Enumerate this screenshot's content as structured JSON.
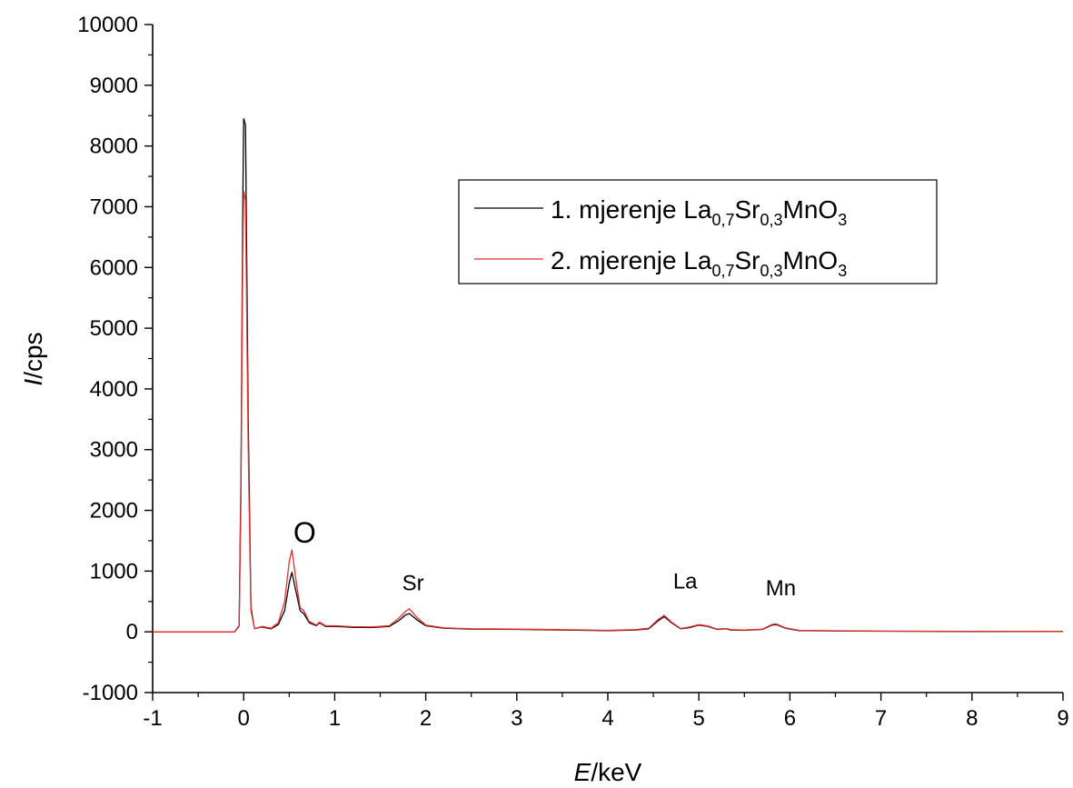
{
  "chart_data": {
    "type": "line",
    "xlabel": {
      "italic": "E",
      "rest": "/keV"
    },
    "ylabel": {
      "italic": "I",
      "rest": "/cps"
    },
    "xlim": [
      -1,
      9
    ],
    "ylim": [
      -1000,
      10000
    ],
    "xticks": [
      -1,
      0,
      1,
      2,
      3,
      4,
      5,
      6,
      7,
      8,
      9
    ],
    "yticks": [
      -1000,
      0,
      1000,
      2000,
      3000,
      4000,
      5000,
      6000,
      7000,
      8000,
      9000,
      10000
    ],
    "grid": false,
    "legend_position": "top-right",
    "series": [
      {
        "color": "#000000",
        "legend": {
          "prefix": "1. mjerenje La",
          "sub1": "0,7",
          "mid1": "Sr",
          "sub2": "0,3",
          "mid2": "MnO",
          "sub3": "3"
        },
        "points": [
          [
            -1,
            0
          ],
          [
            -0.1,
            0
          ],
          [
            -0.05,
            100
          ],
          [
            -0.03,
            2500
          ],
          [
            -0.01,
            7000
          ],
          [
            0.0,
            8450
          ],
          [
            0.02,
            8350
          ],
          [
            0.05,
            3500
          ],
          [
            0.08,
            400
          ],
          [
            0.12,
            50
          ],
          [
            0.2,
            80
          ],
          [
            0.3,
            50
          ],
          [
            0.38,
            120
          ],
          [
            0.45,
            350
          ],
          [
            0.5,
            800
          ],
          [
            0.53,
            980
          ],
          [
            0.57,
            700
          ],
          [
            0.62,
            350
          ],
          [
            0.66,
            300
          ],
          [
            0.72,
            150
          ],
          [
            0.8,
            100
          ],
          [
            0.83,
            150
          ],
          [
            0.9,
            90
          ],
          [
            1.0,
            90
          ],
          [
            1.2,
            75
          ],
          [
            1.4,
            70
          ],
          [
            1.6,
            90
          ],
          [
            1.7,
            180
          ],
          [
            1.78,
            280
          ],
          [
            1.82,
            300
          ],
          [
            1.9,
            200
          ],
          [
            2.0,
            100
          ],
          [
            2.2,
            60
          ],
          [
            2.5,
            45
          ],
          [
            3.0,
            40
          ],
          [
            3.5,
            30
          ],
          [
            4.0,
            20
          ],
          [
            4.3,
            30
          ],
          [
            4.45,
            50
          ],
          [
            4.55,
            180
          ],
          [
            4.62,
            250
          ],
          [
            4.7,
            150
          ],
          [
            4.8,
            50
          ],
          [
            4.9,
            70
          ],
          [
            5.0,
            110
          ],
          [
            5.1,
            90
          ],
          [
            5.2,
            40
          ],
          [
            5.3,
            50
          ],
          [
            5.35,
            30
          ],
          [
            5.5,
            25
          ],
          [
            5.7,
            40
          ],
          [
            5.8,
            110
          ],
          [
            5.85,
            120
          ],
          [
            5.95,
            60
          ],
          [
            6.1,
            20
          ],
          [
            6.5,
            15
          ],
          [
            7.0,
            10
          ],
          [
            8.0,
            5
          ],
          [
            9.0,
            5
          ]
        ]
      },
      {
        "color": "#e8312c",
        "legend": {
          "prefix": "2. mjerenje La",
          "sub1": "0,7",
          "mid1": "Sr",
          "sub2": "0,3",
          "mid2": "MnO",
          "sub3": "3"
        },
        "points": [
          [
            -1,
            0
          ],
          [
            -0.1,
            0
          ],
          [
            -0.05,
            90
          ],
          [
            -0.03,
            2200
          ],
          [
            -0.01,
            6200
          ],
          [
            0.0,
            7250
          ],
          [
            0.02,
            7100
          ],
          [
            0.05,
            3000
          ],
          [
            0.08,
            350
          ],
          [
            0.12,
            50
          ],
          [
            0.2,
            90
          ],
          [
            0.3,
            60
          ],
          [
            0.38,
            150
          ],
          [
            0.45,
            500
          ],
          [
            0.5,
            1150
          ],
          [
            0.53,
            1350
          ],
          [
            0.57,
            900
          ],
          [
            0.62,
            400
          ],
          [
            0.66,
            350
          ],
          [
            0.72,
            170
          ],
          [
            0.8,
            110
          ],
          [
            0.83,
            160
          ],
          [
            0.9,
            100
          ],
          [
            1.0,
            100
          ],
          [
            1.2,
            85
          ],
          [
            1.4,
            80
          ],
          [
            1.6,
            100
          ],
          [
            1.7,
            220
          ],
          [
            1.78,
            340
          ],
          [
            1.82,
            380
          ],
          [
            1.9,
            240
          ],
          [
            2.0,
            110
          ],
          [
            2.2,
            65
          ],
          [
            2.5,
            50
          ],
          [
            3.0,
            45
          ],
          [
            3.5,
            35
          ],
          [
            4.0,
            25
          ],
          [
            4.3,
            35
          ],
          [
            4.45,
            60
          ],
          [
            4.55,
            200
          ],
          [
            4.62,
            270
          ],
          [
            4.7,
            160
          ],
          [
            4.8,
            55
          ],
          [
            4.9,
            80
          ],
          [
            5.0,
            120
          ],
          [
            5.1,
            95
          ],
          [
            5.2,
            45
          ],
          [
            5.3,
            55
          ],
          [
            5.35,
            35
          ],
          [
            5.5,
            30
          ],
          [
            5.7,
            45
          ],
          [
            5.8,
            120
          ],
          [
            5.85,
            130
          ],
          [
            5.95,
            65
          ],
          [
            6.1,
            25
          ],
          [
            6.5,
            18
          ],
          [
            7.0,
            12
          ],
          [
            8.0,
            8
          ],
          [
            9.0,
            6
          ]
        ]
      }
    ],
    "annotations": [
      {
        "text": "O",
        "x": 0.67,
        "y": 1470,
        "cls": "annot-o"
      },
      {
        "text": "Sr",
        "x": 1.86,
        "y": 680,
        "cls": "annot"
      },
      {
        "text": "La",
        "x": 4.85,
        "y": 710,
        "cls": "annot"
      },
      {
        "text": "Mn",
        "x": 5.9,
        "y": 600,
        "cls": "annot"
      }
    ]
  }
}
